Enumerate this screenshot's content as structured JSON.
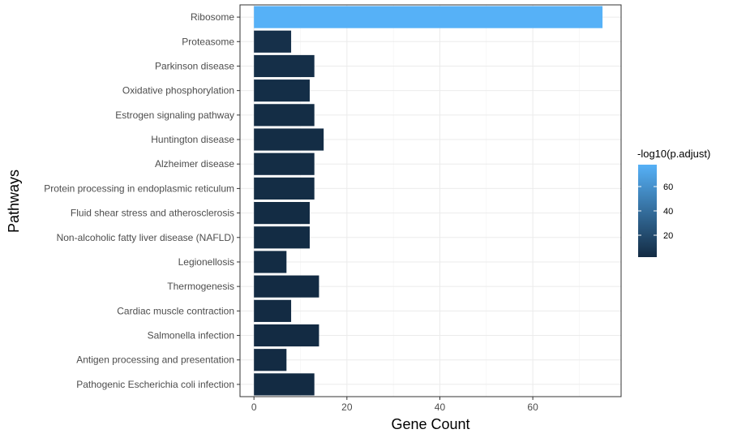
{
  "chart_data": {
    "type": "bar",
    "orientation": "horizontal",
    "title": "",
    "xlabel": "Gene Count",
    "ylabel": "Pathways",
    "xlim": [
      -3,
      79
    ],
    "x_ticks": [
      0,
      20,
      40,
      60
    ],
    "grid": true,
    "categories": [
      "Ribosome",
      "Proteasome",
      "Parkinson disease",
      "Oxidative phosphorylation",
      "Estrogen signaling pathway",
      "Huntington disease",
      "Alzheimer disease",
      "Protein processing in endoplasmic reticulum",
      "Fluid shear stress and atherosclerosis",
      "Non-alcoholic fatty liver disease (NAFLD)",
      "Legionellosis",
      "Thermogenesis",
      "Cardiac muscle contraction",
      "Salmonella infection",
      "Antigen processing and presentation",
      "Pathogenic Escherichia coli infection"
    ],
    "values": [
      75,
      8,
      13,
      12,
      13,
      15,
      13,
      13,
      12,
      12,
      7,
      14,
      8,
      14,
      7,
      13
    ],
    "color_values": [
      78,
      5,
      4,
      3.5,
      3,
      3,
      3,
      3,
      2.5,
      2.5,
      2.5,
      2,
      2,
      2,
      2,
      2
    ],
    "legend": {
      "title": "-log10(p.adjust)",
      "placement": "right",
      "ticks": [
        20,
        40,
        60
      ],
      "range": [
        2,
        78
      ],
      "low_color": "#132B43",
      "high_color": "#56B1F7"
    }
  }
}
